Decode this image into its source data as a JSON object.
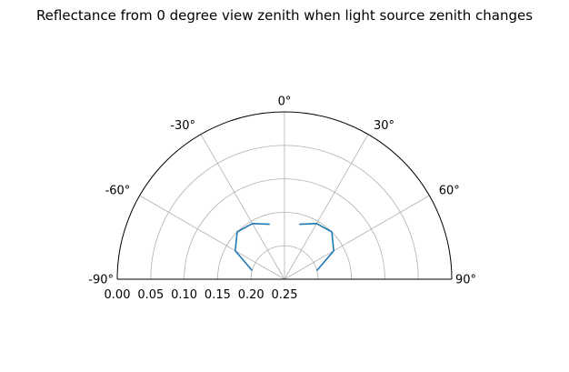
{
  "chart_data": {
    "type": "line",
    "projection": "polar-half",
    "title": "Reflectance from 0 degree view zenith when light source zenith changes",
    "xlabel": "",
    "ylabel": "",
    "theta_direction": "clockwise",
    "theta_zero": "top",
    "theta_range_deg": [
      -90,
      90
    ],
    "theta_ticks": [
      "-90°",
      "-60°",
      "-30°",
      "0°",
      "30°",
      "60°",
      "90°"
    ],
    "theta_tick_values": [
      -90,
      -60,
      -30,
      0,
      30,
      60,
      90
    ],
    "r_ticks": [
      "0.00",
      "0.05",
      "0.10",
      "0.15",
      "0.20",
      "0.25"
    ],
    "r_tick_values": [
      0,
      0.05,
      0.1,
      0.15,
      0.2,
      0.25
    ],
    "r_range": [
      0,
      0.25
    ],
    "r_inverted": true,
    "grid": true,
    "series": [
      {
        "color": "#1f77b4",
        "segments": [
          {
            "theta": [
              -75,
              -60,
              -45,
              -30,
              -15
            ],
            "r": [
              0.2,
              0.165,
              0.15,
              0.154,
              0.165
            ]
          },
          {
            "theta": [
              15,
              30,
              45,
              60,
              75
            ],
            "r": [
              0.165,
              0.154,
              0.15,
              0.165,
              0.2
            ]
          }
        ]
      }
    ]
  }
}
